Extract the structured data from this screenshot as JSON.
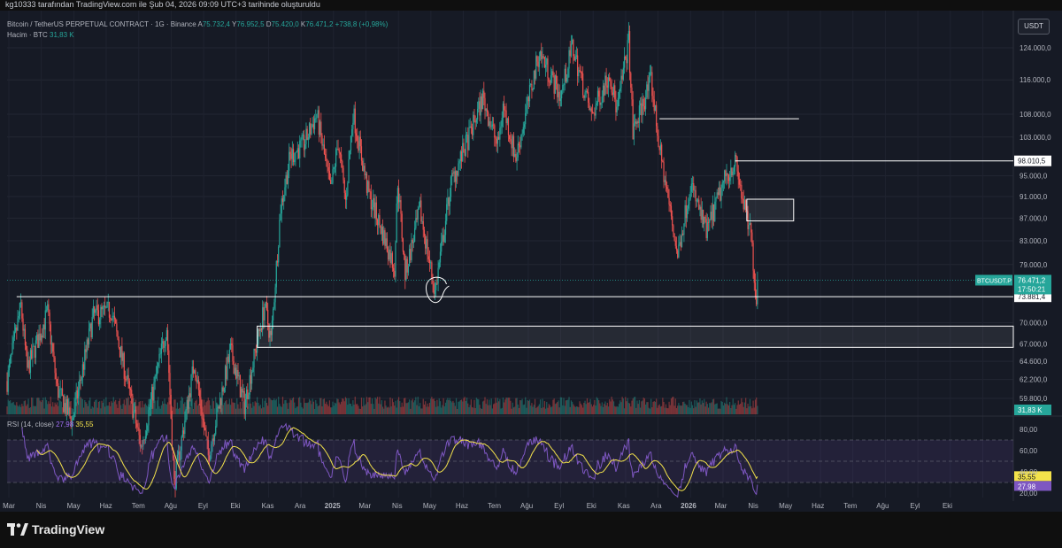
{
  "header": {
    "created_by": "kg10333 tarafından TradingView.com ile Şub 04, 2026 09:09 UTC+3 tarihinde oluşturuldu"
  },
  "legend": {
    "symbol": "Bitcoin / TetherUS PERPETUAL CONTRACT · 1G · Binance",
    "open_label": "A",
    "open": "75.732,4",
    "high_label": "Y",
    "high": "76.952,5",
    "low_label": "D",
    "low": "75.420,0",
    "close_label": "K",
    "close": "76.471,2",
    "change": "+738,8 (+0,98%)",
    "volume_label": "Hacim · BTC",
    "volume": "31,83 K"
  },
  "currency": "USDT",
  "rsi": {
    "label": "RSI (14, close)",
    "value": "27,98",
    "ma": "35,55"
  },
  "colors": {
    "up": "#26a69a",
    "down": "#ef5350",
    "background": "#161a25",
    "rsi_line": "#7e57c2",
    "rsi_ma": "#f3e24b"
  },
  "branding": {
    "logo": "TradingView"
  },
  "chart_data": {
    "type": "candlestick",
    "price_axis": {
      "ticks": [
        124000,
        116000,
        108000,
        103000,
        98010.5,
        95000,
        91000,
        87000,
        83000,
        79000,
        76471.2,
        73881.4,
        70000,
        67000,
        64600,
        62200,
        59800
      ],
      "tick_labels": [
        "124.000,0",
        "116.000,0",
        "108.000,0",
        "103.000,0",
        "98.010,5",
        "95.000,0",
        "91.000,0",
        "87.000,0",
        "83.000,0",
        "79.000,0",
        "76.471,2",
        "73.881,4",
        "70.000,0",
        "67.000,0",
        "64.600,0",
        "62.200,0",
        "59.800,0"
      ],
      "scale": "log"
    },
    "time_axis": {
      "labels": [
        "Mar",
        "Nis",
        "May",
        "Haz",
        "Tem",
        "Ağu",
        "Eyl",
        "Eki",
        "Kas",
        "Ara",
        "2025",
        "Mar",
        "Nis",
        "May",
        "Haz",
        "Tem",
        "Ağu",
        "Eyl",
        "Eki",
        "Kas",
        "Ara",
        "2026",
        "Mar",
        "Nis",
        "May",
        "Haz",
        "Tem",
        "Ağu",
        "Eyl",
        "Eki"
      ]
    },
    "series": [
      {
        "name": "BTCUSDT.P",
        "points": [
          [
            "2024-03-01",
            62000
          ],
          [
            "2024-03-14",
            72500
          ],
          [
            "2024-03-20",
            63500
          ],
          [
            "2024-04-08",
            71500
          ],
          [
            "2024-04-17",
            61000
          ],
          [
            "2024-05-01",
            57000
          ],
          [
            "2024-05-21",
            71000
          ],
          [
            "2024-06-07",
            71800
          ],
          [
            "2024-06-24",
            60500
          ],
          [
            "2024-07-05",
            54000
          ],
          [
            "2024-07-29",
            69500
          ],
          [
            "2024-08-05",
            50000
          ],
          [
            "2024-08-24",
            64500
          ],
          [
            "2024-09-06",
            53000
          ],
          [
            "2024-09-27",
            66000
          ],
          [
            "2024-10-10",
            59000
          ],
          [
            "2024-10-29",
            72500
          ],
          [
            "2024-11-04",
            67500
          ],
          [
            "2024-11-13",
            89000
          ],
          [
            "2024-11-22",
            99000
          ],
          [
            "2024-12-05",
            101500
          ],
          [
            "2024-12-17",
            108000
          ],
          [
            "2024-12-30",
            92000
          ],
          [
            "2025-01-06",
            102000
          ],
          [
            "2025-01-13",
            90000
          ],
          [
            "2025-01-20",
            108500
          ],
          [
            "2025-02-03",
            92000
          ],
          [
            "2025-02-28",
            78500
          ],
          [
            "2025-03-03",
            94000
          ],
          [
            "2025-03-10",
            77500
          ],
          [
            "2025-03-24",
            88500
          ],
          [
            "2025-04-07",
            74500
          ],
          [
            "2025-04-22",
            93500
          ],
          [
            "2025-05-09",
            103000
          ],
          [
            "2025-05-22",
            111800
          ],
          [
            "2025-06-05",
            101000
          ],
          [
            "2025-06-10",
            110000
          ],
          [
            "2025-06-22",
            98500
          ],
          [
            "2025-07-14",
            123000
          ],
          [
            "2025-08-03",
            112000
          ],
          [
            "2025-08-14",
            124400
          ],
          [
            "2025-09-01",
            107500
          ],
          [
            "2025-09-18",
            117800
          ],
          [
            "2025-09-25",
            108800
          ],
          [
            "2025-10-06",
            126000
          ],
          [
            "2025-10-10",
            104000
          ],
          [
            "2025-10-27",
            116000
          ],
          [
            "2025-11-04",
            100500
          ],
          [
            "2025-11-21",
            80500
          ],
          [
            "2025-12-03",
            93500
          ],
          [
            "2025-12-18",
            84500
          ],
          [
            "2026-01-05",
            94700
          ],
          [
            "2026-01-14",
            97900
          ],
          [
            "2026-01-25",
            86500
          ],
          [
            "2026-01-29",
            84000
          ],
          [
            "2026-02-03",
            73000
          ],
          [
            "2026-02-04",
            76471.2
          ]
        ]
      }
    ],
    "rsi": {
      "ticks": [
        80,
        60,
        40,
        20
      ],
      "upper": 70,
      "lower": 30,
      "current": 27.98,
      "ma_current": 35.55
    },
    "annotations": [
      {
        "type": "horizontal-line",
        "price": 107000,
        "from": "2025-11-04",
        "to": "2026-03-15"
      },
      {
        "type": "horizontal-line",
        "price": 98010.5,
        "from": "2026-01-14",
        "label": "98.010,5"
      },
      {
        "type": "horizontal-line",
        "price": 73881.4,
        "from": "2024-03-10",
        "label": "73.881,4"
      },
      {
        "type": "rectangle",
        "price_top": 90500,
        "price_bottom": 86500,
        "from": "2026-01-25",
        "to": "2026-03-10"
      },
      {
        "type": "rectangle",
        "price_top": 69500,
        "price_bottom": 66500,
        "from": "2024-10-22"
      },
      {
        "type": "freehand-circle",
        "date": "2025-04-07",
        "price": 75000
      }
    ],
    "current_price_label": "BTCUSDT.P",
    "current_price": "76.471,2",
    "countdown": "17:50:21",
    "volume_badge": "31,83 K"
  }
}
